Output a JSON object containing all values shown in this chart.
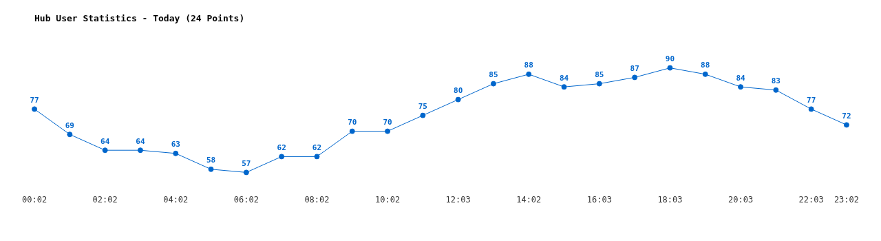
{
  "chart_data": {
    "type": "line",
    "title": "Hub User Statistics - Today (24 Points)",
    "categories": [
      "00:02",
      null,
      "02:02",
      null,
      "04:02",
      null,
      "06:02",
      null,
      "08:02",
      null,
      "10:02",
      null,
      "12:03",
      null,
      "14:02",
      null,
      "16:03",
      null,
      "18:03",
      null,
      "20:03",
      null,
      "22:03",
      "23:02"
    ],
    "series": [
      {
        "color": "#0066cc",
        "values": [
          77,
          69,
          64,
          64,
          63,
          58,
          57,
          62,
          62,
          70,
          70,
          75,
          80,
          85,
          88,
          84,
          85,
          87,
          90,
          88,
          84,
          83,
          77,
          72
        ]
      }
    ],
    "data_labels": true,
    "marker": "circle",
    "line_style": "solid",
    "grid": false,
    "legend": false
  }
}
